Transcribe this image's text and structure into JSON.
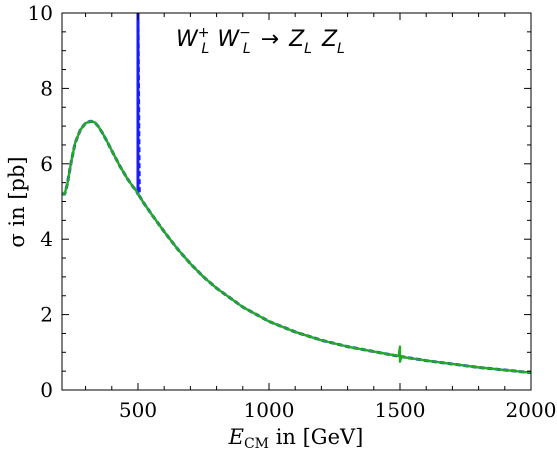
{
  "chart_data": {
    "type": "line",
    "xlabel_main": "E",
    "xlabel_sub": "CM",
    "xlabel_rest": " in [GeV]",
    "ylabel": "σ in [pb]",
    "xlim": [
      210,
      2000
    ],
    "ylim": [
      0,
      10
    ],
    "xticks": [
      500,
      1000,
      1500,
      2000
    ],
    "yticks": [
      0,
      2,
      4,
      6,
      8,
      10
    ],
    "title": {
      "w1": "W",
      "w1_sup": "+",
      "w1_sub": "L",
      "w2": "W",
      "w2_sup": "−",
      "w2_sub": "L",
      "arrow": "→",
      "z1": "Z",
      "z1_sub": "L",
      "z2": "Z",
      "z2_sub": "L"
    },
    "series": [
      {
        "color": "#1a1aff",
        "style": "dashed",
        "x": [
          210,
          220,
          230,
          245,
          260,
          280,
          300,
          320,
          335,
          350,
          370,
          400,
          430,
          460,
          480,
          495,
          500,
          500,
          500,
          500,
          505,
          520,
          550,
          600,
          650,
          700,
          750,
          800,
          900,
          1000,
          1100,
          1200,
          1300,
          1400,
          1500,
          1600,
          1700,
          1800,
          1900,
          2000
        ],
        "y": [
          5.2,
          5.2,
          5.45,
          6.05,
          6.55,
          6.9,
          7.08,
          7.13,
          7.1,
          6.98,
          6.75,
          6.35,
          5.95,
          5.6,
          5.4,
          5.27,
          5.2,
          10,
          5.2,
          10,
          5.15,
          4.98,
          4.68,
          4.2,
          3.75,
          3.35,
          3.0,
          2.7,
          2.2,
          1.82,
          1.54,
          1.32,
          1.15,
          1.02,
          0.89,
          0.78,
          0.69,
          0.6,
          0.53,
          0.46
        ]
      },
      {
        "color": "#22aa22",
        "style": "solid",
        "x": [
          210,
          220,
          230,
          245,
          260,
          280,
          300,
          320,
          335,
          350,
          370,
          400,
          430,
          460,
          480,
          495,
          500,
          505,
          520,
          550,
          600,
          650,
          700,
          750,
          800,
          900,
          1000,
          1100,
          1200,
          1300,
          1400,
          1495,
          1500,
          1500,
          1505,
          1600,
          1700,
          1800,
          1900,
          2000
        ],
        "y": [
          5.2,
          5.2,
          5.45,
          6.05,
          6.55,
          6.9,
          7.08,
          7.13,
          7.1,
          6.98,
          6.75,
          6.35,
          5.95,
          5.6,
          5.4,
          5.27,
          5.2,
          5.15,
          4.98,
          4.68,
          4.2,
          3.75,
          3.35,
          3.0,
          2.7,
          2.2,
          1.82,
          1.54,
          1.32,
          1.15,
          1.02,
          0.9,
          1.15,
          0.75,
          0.88,
          0.78,
          0.69,
          0.6,
          0.53,
          0.46
        ]
      }
    ],
    "grid": false,
    "frame": true
  }
}
